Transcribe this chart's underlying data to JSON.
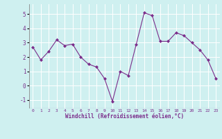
{
  "x": [
    0,
    1,
    2,
    3,
    4,
    5,
    6,
    7,
    8,
    9,
    10,
    11,
    12,
    13,
    14,
    15,
    16,
    17,
    18,
    19,
    20,
    21,
    22,
    23
  ],
  "y": [
    2.7,
    1.8,
    2.4,
    3.2,
    2.8,
    2.9,
    2.0,
    1.5,
    1.3,
    0.5,
    -1.1,
    1.0,
    0.7,
    2.9,
    5.1,
    4.9,
    3.1,
    3.1,
    3.7,
    3.5,
    3.0,
    2.5,
    1.8,
    0.5
  ],
  "line_color": "#7b2d8b",
  "marker": "D",
  "marker_size": 2.0,
  "bg_color": "#cff0f0",
  "grid_color": "#ffffff",
  "xlabel": "Windchill (Refroidissement éolien,°C)",
  "xlabel_color": "#7b2d8b",
  "tick_color": "#7b2d8b",
  "axis_line_color": "#7b2d8b",
  "ylim": [
    -1.6,
    5.7
  ],
  "xlim": [
    -0.5,
    23.5
  ],
  "yticks": [
    -1,
    0,
    1,
    2,
    3,
    4,
    5
  ],
  "xticks": [
    0,
    1,
    2,
    3,
    4,
    5,
    6,
    7,
    8,
    9,
    10,
    11,
    12,
    13,
    14,
    15,
    16,
    17,
    18,
    19,
    20,
    21,
    22,
    23
  ],
  "figsize": [
    3.2,
    2.0
  ],
  "dpi": 100
}
